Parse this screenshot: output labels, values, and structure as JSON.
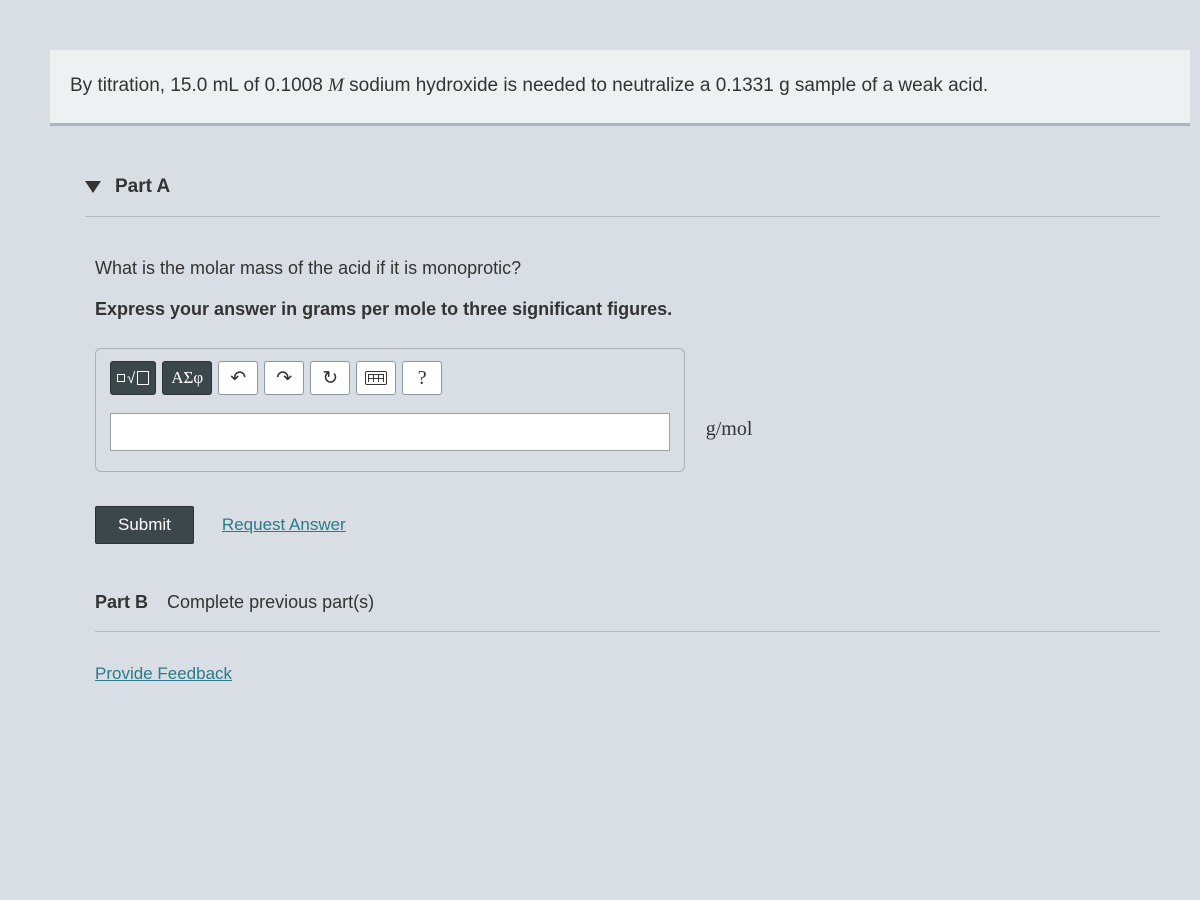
{
  "problem_statement": {
    "prefix": "By titration, ",
    "volume": "15.0 mL",
    "mid1": " of 0.1008 ",
    "molar_symbol": "M",
    "mid2": " sodium hydroxide is needed to neutralize a ",
    "mass": "0.1331 g",
    "suffix": " sample of a weak acid."
  },
  "part_a": {
    "label": "Part A",
    "question": "What is the molar mass of the acid if it is monoprotic?",
    "instruction": "Express your answer in grams per mole to three significant figures.",
    "unit": "g/mol",
    "toolbar": {
      "templates": "V",
      "greek": "ΑΣφ",
      "undo": "↶",
      "redo": "↷",
      "reset": "↻",
      "help": "?"
    },
    "submit_label": "Submit",
    "request_answer_label": "Request Answer",
    "answer_value": ""
  },
  "part_b": {
    "label": "Part B",
    "status": "Complete previous part(s)"
  },
  "feedback_link": "Provide Feedback",
  "colors": {
    "page_bg": "#d8dee3",
    "box_bg": "#eef1f2",
    "border": "#aab7bd",
    "dark_btn": "#3c474c",
    "link": "#2a7a8a"
  }
}
